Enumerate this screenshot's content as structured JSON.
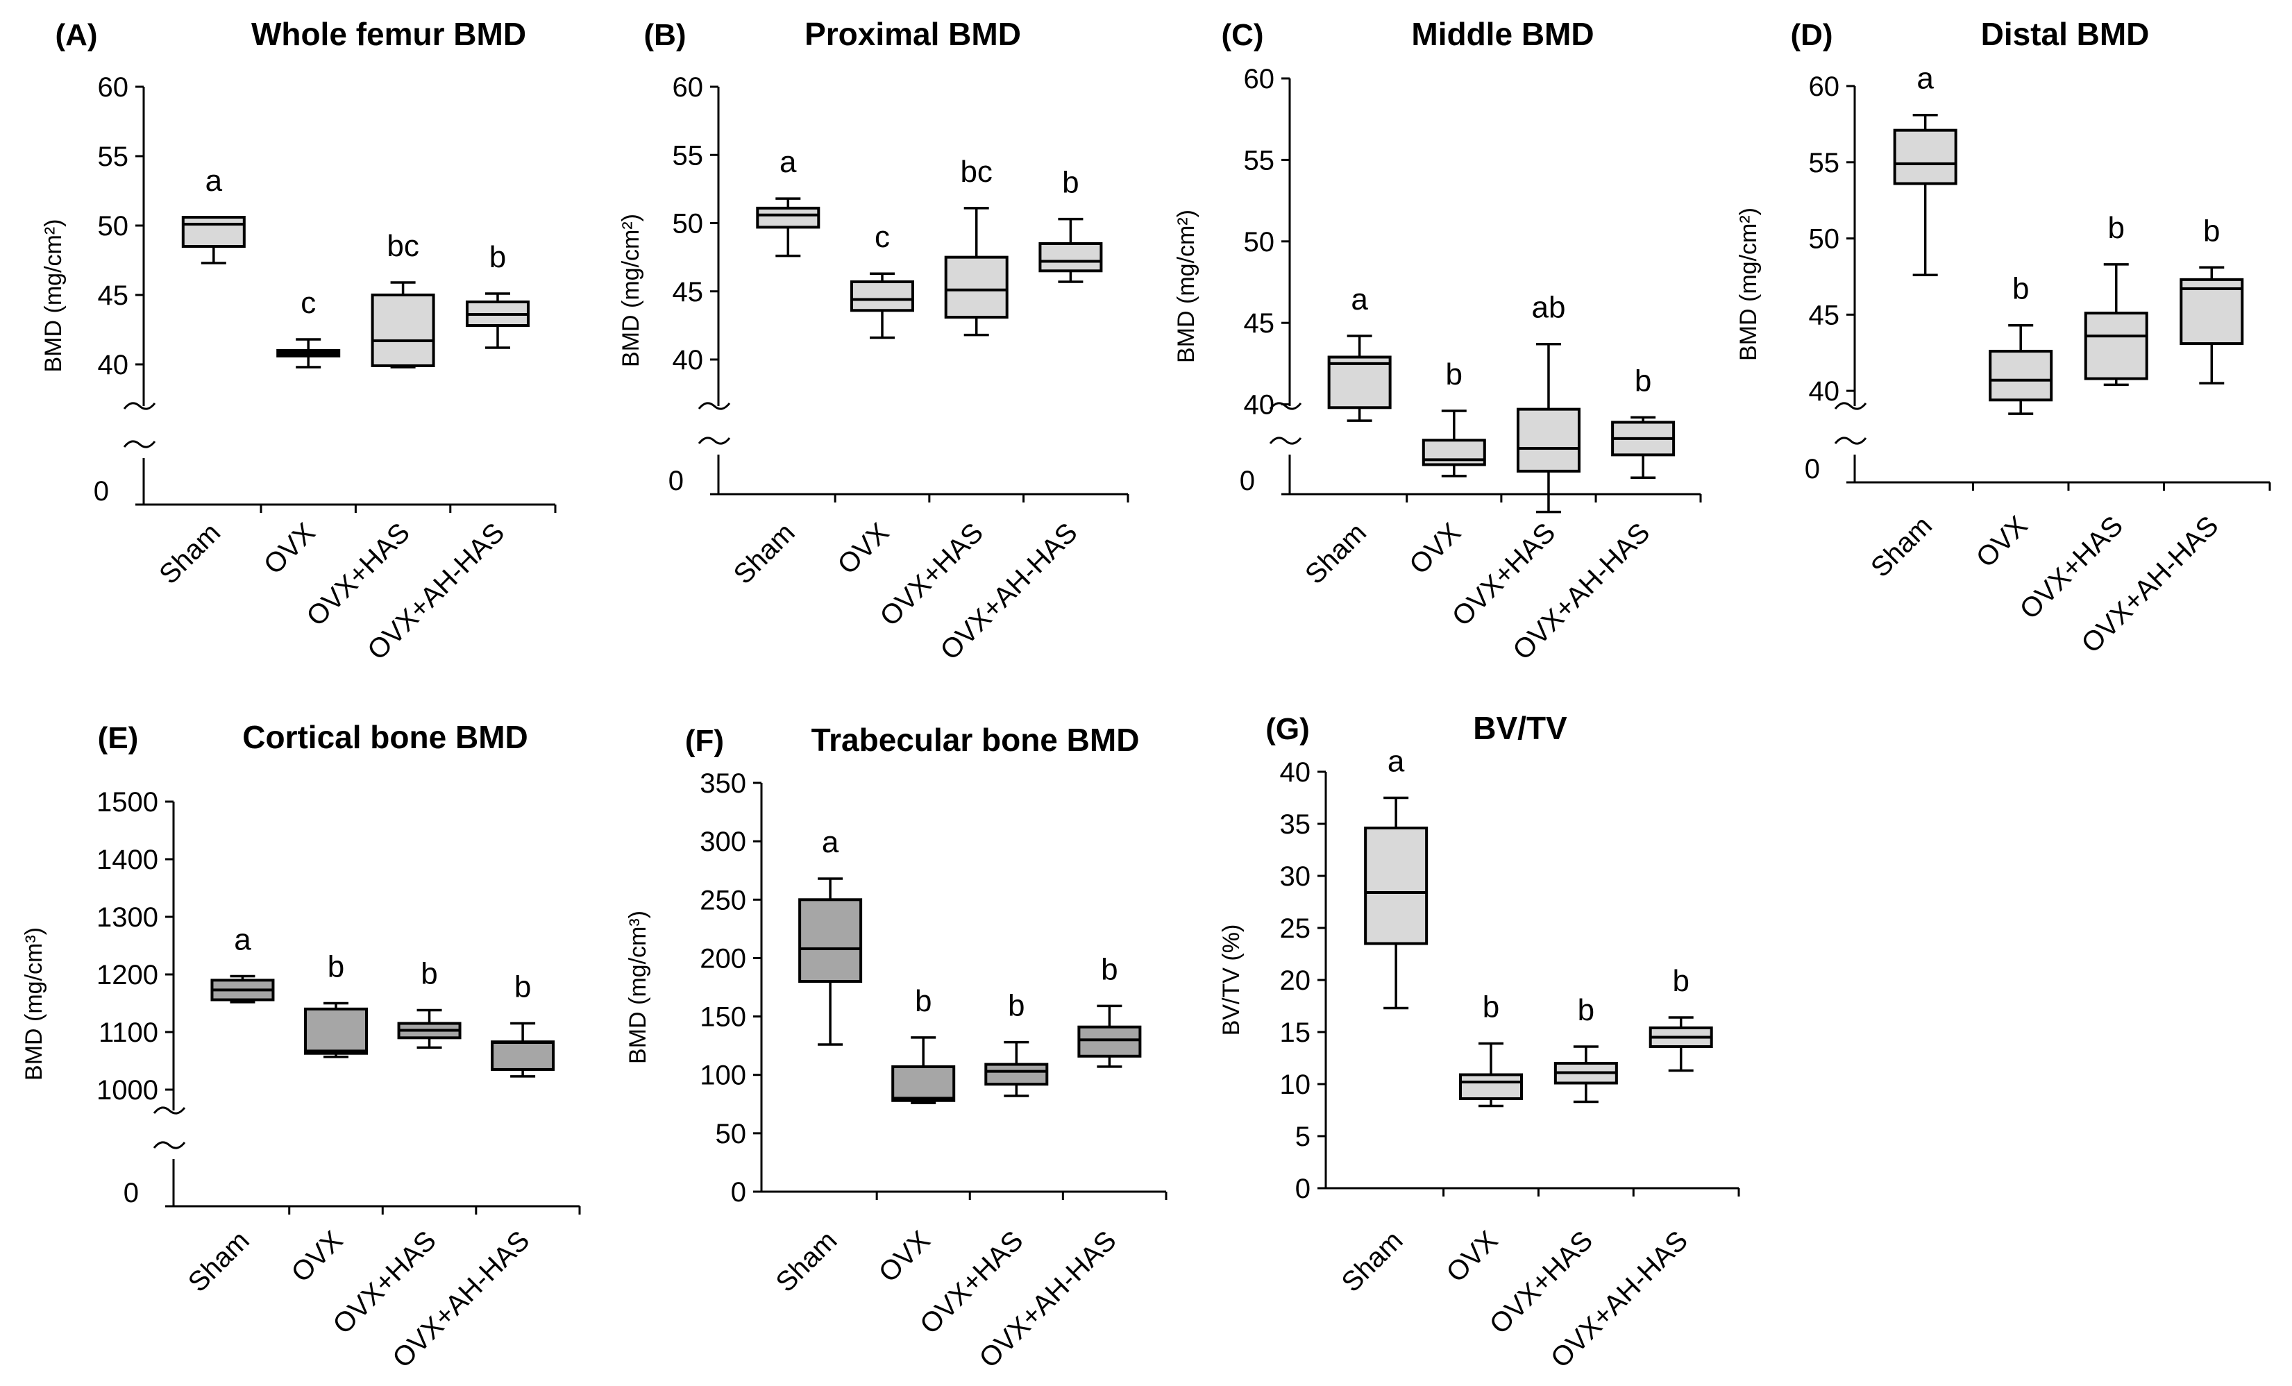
{
  "colors": {
    "box_light": "#d9d9d9",
    "box_dark": "#a6a6a6",
    "line": "#000000",
    "background": "#ffffff"
  },
  "chart_data": [
    {
      "id": "A",
      "letter": "(A)",
      "title": "Whole femur BMD",
      "type": "box",
      "ylabel": "BMD (mg/cm²)",
      "axis_break": true,
      "ylim": [
        40,
        60
      ],
      "yticks": [
        "40",
        "45",
        "50",
        "55",
        "60"
      ],
      "break_tick": "0",
      "categories": [
        "Sham",
        "OVX",
        "OVX+HAS",
        "OVX+AH-HAS"
      ],
      "box_color": "light",
      "series": [
        {
          "name": "Sham",
          "min": 47.3,
          "q1": 48.5,
          "median": 50.1,
          "q3": 50.6,
          "max": 50.6,
          "sig": "a"
        },
        {
          "name": "OVX",
          "min": 39.8,
          "q1": 40.6,
          "median": 40.8,
          "q3": 41.0,
          "max": 41.8,
          "sig": "c"
        },
        {
          "name": "OVX+HAS",
          "min": 39.8,
          "q1": 39.9,
          "median": 41.7,
          "q3": 45.0,
          "max": 45.9,
          "sig": "bc"
        },
        {
          "name": "OVX+AH-HAS",
          "min": 41.2,
          "q1": 42.8,
          "median": 43.6,
          "q3": 44.5,
          "max": 45.1,
          "sig": "b"
        }
      ]
    },
    {
      "id": "B",
      "letter": "(B)",
      "title": "Proximal BMD",
      "type": "box",
      "ylabel": "BMD (mg/cm²)",
      "axis_break": true,
      "ylim": [
        40,
        60
      ],
      "yticks": [
        "40",
        "45",
        "50",
        "55",
        "60"
      ],
      "break_tick": "0",
      "categories": [
        "Sham",
        "OVX",
        "OVX+HAS",
        "OVX+AH-HAS"
      ],
      "box_color": "light",
      "series": [
        {
          "name": "Sham",
          "min": 47.6,
          "q1": 49.7,
          "median": 50.6,
          "q3": 51.1,
          "max": 51.8,
          "sig": "a"
        },
        {
          "name": "OVX",
          "min": 41.6,
          "q1": 43.6,
          "median": 44.4,
          "q3": 45.7,
          "max": 46.3,
          "sig": "c"
        },
        {
          "name": "OVX+HAS",
          "min": 41.8,
          "q1": 43.1,
          "median": 45.1,
          "q3": 47.5,
          "max": 51.1,
          "sig": "bc"
        },
        {
          "name": "OVX+AH-HAS",
          "min": 45.7,
          "q1": 46.5,
          "median": 47.2,
          "q3": 48.5,
          "max": 50.3,
          "sig": "b"
        }
      ]
    },
    {
      "id": "C",
      "letter": "(C)",
      "title": "Middle BMD",
      "type": "box",
      "ylabel": "BMD (mg/cm²)",
      "axis_break": true,
      "ylim": [
        35,
        60
      ],
      "yticks": [
        "40",
        "45",
        "50",
        "55",
        "60"
      ],
      "break_tick": "0",
      "categories": [
        "Sham",
        "OVX",
        "OVX+HAS",
        "OVX+AH-HAS"
      ],
      "box_color": "light",
      "series": [
        {
          "name": "Sham",
          "min": 39.0,
          "q1": 39.8,
          "median": 42.5,
          "q3": 42.9,
          "max": 44.2,
          "sig": "a"
        },
        {
          "name": "OVX",
          "min": 35.6,
          "q1": 36.3,
          "median": 36.6,
          "q3": 37.8,
          "max": 39.6,
          "sig": "b"
        },
        {
          "name": "OVX+HAS",
          "min": 33.4,
          "q1": 35.9,
          "median": 37.3,
          "q3": 39.7,
          "max": 43.7,
          "sig": "ab"
        },
        {
          "name": "OVX+AH-HAS",
          "min": 35.5,
          "q1": 36.9,
          "median": 37.9,
          "q3": 38.9,
          "max": 39.2,
          "sig": "b"
        }
      ]
    },
    {
      "id": "D",
      "letter": "(D)",
      "title": "Distal BMD",
      "type": "box",
      "ylabel": "BMD (mg/cm²)",
      "axis_break": true,
      "ylim": [
        37,
        60
      ],
      "yticks": [
        "40",
        "45",
        "50",
        "55",
        "60"
      ],
      "break_tick": "0",
      "categories": [
        "Sham",
        "OVX",
        "OVX+HAS",
        "OVX+AH-HAS"
      ],
      "box_color": "light",
      "series": [
        {
          "name": "Sham",
          "min": 47.6,
          "q1": 53.6,
          "median": 54.9,
          "q3": 57.1,
          "max": 58.1,
          "sig": "a"
        },
        {
          "name": "OVX",
          "min": 38.5,
          "q1": 39.4,
          "median": 40.7,
          "q3": 42.6,
          "max": 44.3,
          "sig": "b"
        },
        {
          "name": "OVX+HAS",
          "min": 40.4,
          "q1": 40.8,
          "median": 43.6,
          "q3": 45.1,
          "max": 48.3,
          "sig": "b"
        },
        {
          "name": "OVX+AH-HAS",
          "min": 40.5,
          "q1": 43.1,
          "median": 46.7,
          "q3": 47.3,
          "max": 48.1,
          "sig": "b"
        }
      ]
    },
    {
      "id": "E",
      "letter": "(E)",
      "title": "Cortical bone BMD",
      "type": "box",
      "ylabel": "BMD (mg/cm³)",
      "axis_break": true,
      "ylim": [
        1000,
        1500
      ],
      "yticks": [
        "1000",
        "1100",
        "1200",
        "1300",
        "1400",
        "1500"
      ],
      "break_tick": "0",
      "categories": [
        "Sham",
        "OVX",
        "OVX+HAS",
        "OVX+AH-HAS"
      ],
      "box_color": "dark",
      "series": [
        {
          "name": "Sham",
          "min": 1152,
          "q1": 1156,
          "median": 1173,
          "q3": 1190,
          "max": 1197,
          "sig": "a"
        },
        {
          "name": "OVX",
          "min": 1057,
          "q1": 1063,
          "median": 1067,
          "q3": 1140,
          "max": 1150,
          "sig": "b"
        },
        {
          "name": "OVX+HAS",
          "min": 1073,
          "q1": 1090,
          "median": 1103,
          "q3": 1115,
          "max": 1138,
          "sig": "b"
        },
        {
          "name": "OVX+AH-HAS",
          "min": 1023,
          "q1": 1035,
          "median": 1082,
          "q3": 1083,
          "max": 1115,
          "sig": "b"
        }
      ]
    },
    {
      "id": "F",
      "letter": "(F)",
      "title": "Trabecular bone BMD",
      "type": "box",
      "ylabel": "BMD (mg/cm³)",
      "axis_break": false,
      "ylim": [
        0,
        350
      ],
      "yticks": [
        "0",
        "50",
        "100",
        "150",
        "200",
        "250",
        "300",
        "350"
      ],
      "categories": [
        "Sham",
        "OVX",
        "OVX+HAS",
        "OVX+AH-HAS"
      ],
      "box_color": "dark",
      "series": [
        {
          "name": "Sham",
          "min": 126,
          "q1": 180,
          "median": 208,
          "q3": 250,
          "max": 268,
          "sig": "a"
        },
        {
          "name": "OVX",
          "min": 76,
          "q1": 78,
          "median": 80,
          "q3": 107,
          "max": 132,
          "sig": "b"
        },
        {
          "name": "OVX+HAS",
          "min": 82,
          "q1": 92,
          "median": 103,
          "q3": 109,
          "max": 128,
          "sig": "b"
        },
        {
          "name": "OVX+AH-HAS",
          "min": 107,
          "q1": 116,
          "median": 130,
          "q3": 141,
          "max": 159,
          "sig": "b"
        }
      ]
    },
    {
      "id": "G",
      "letter": "(G)",
      "title": "BV/TV",
      "type": "box",
      "ylabel": "BV/TV (%)",
      "axis_break": false,
      "ylim": [
        0,
        40
      ],
      "yticks": [
        "0",
        "5",
        "10",
        "15",
        "20",
        "25",
        "30",
        "35",
        "40"
      ],
      "categories": [
        "Sham",
        "OVX",
        "OVX+HAS",
        "OVX+AH-HAS"
      ],
      "box_color": "light",
      "series": [
        {
          "name": "Sham",
          "min": 17.3,
          "q1": 23.5,
          "median": 28.4,
          "q3": 34.6,
          "max": 37.5,
          "sig": "a"
        },
        {
          "name": "OVX",
          "min": 7.9,
          "q1": 8.6,
          "median": 10.2,
          "q3": 10.9,
          "max": 13.9,
          "sig": "b"
        },
        {
          "name": "OVX+HAS",
          "min": 8.3,
          "q1": 10.1,
          "median": 11.1,
          "q3": 12.0,
          "max": 13.6,
          "sig": "b"
        },
        {
          "name": "OVX+AH-HAS",
          "min": 11.3,
          "q1": 13.6,
          "median": 14.5,
          "q3": 15.4,
          "max": 16.4,
          "sig": "b"
        }
      ]
    }
  ]
}
